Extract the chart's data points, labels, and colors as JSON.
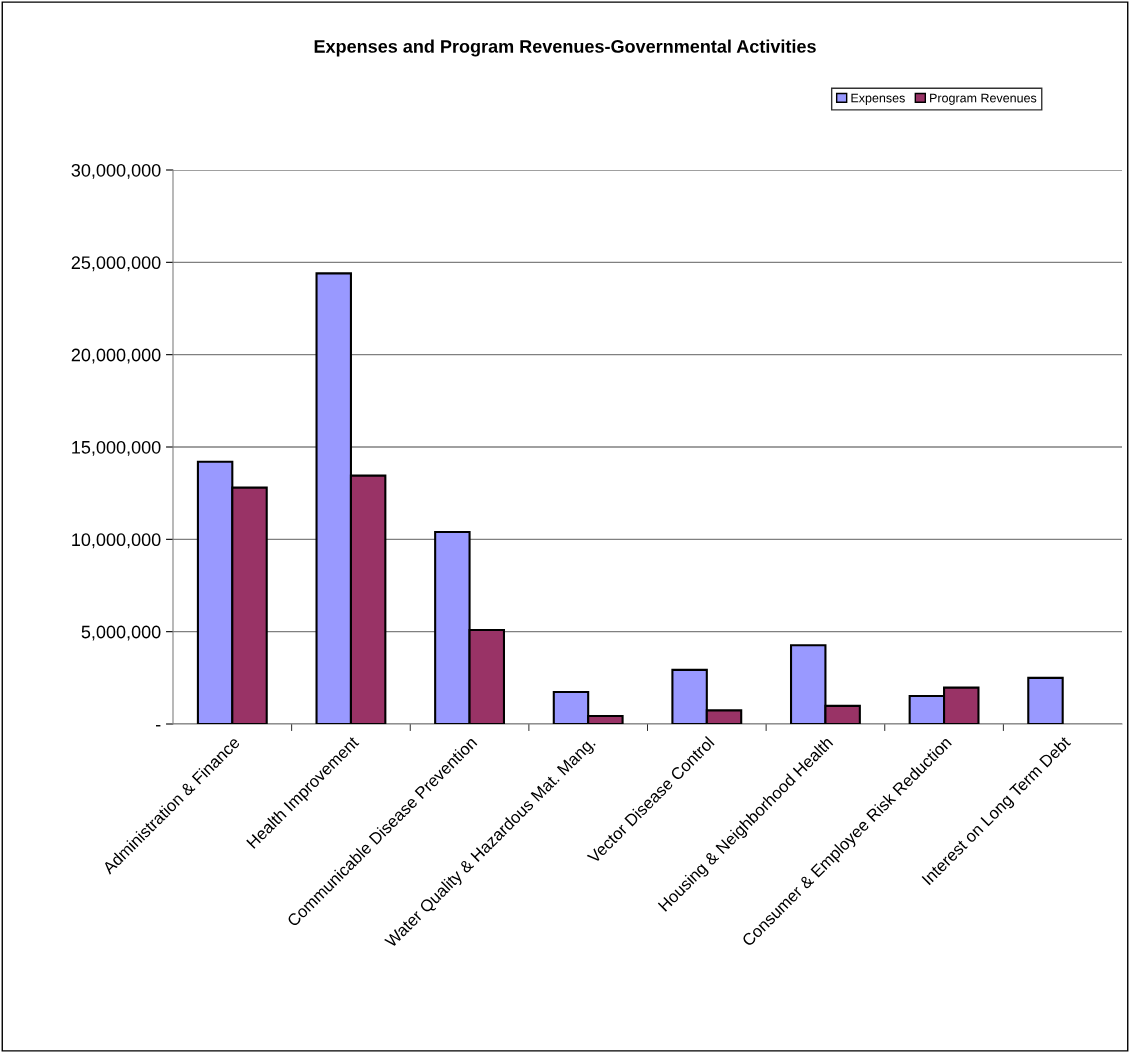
{
  "chart_data": {
    "type": "bar",
    "title": "Expenses and Program Revenues-Governmental Activities",
    "categories": [
      "Administration & Finance",
      "Health Improvement",
      "Communicable Disease Prevention",
      "Water Quality & Hazardous Mat. Mang.",
      "Vector Disease Control",
      "Housing & Neighborhood Health",
      "Consumer & Employee Risk Reduction",
      "Interest on Long Term Debt"
    ],
    "series": [
      {
        "name": "Expenses",
        "color": "#9999ff",
        "values": [
          14200000,
          24400000,
          10400000,
          1730000,
          2930000,
          4260000,
          1520000,
          2500000
        ]
      },
      {
        "name": "Program Revenues",
        "color": "#993366",
        "values": [
          12800000,
          13450000,
          5090000,
          430000.0,
          740000,
          980000,
          1970000,
          null
        ]
      }
    ],
    "ylim": [
      0,
      30000000
    ],
    "yticks": [
      {
        "value": 0,
        "label": "-"
      },
      {
        "value": 5000000,
        "label": "5,000,000"
      },
      {
        "value": 10000000,
        "label": "10,000,000"
      },
      {
        "value": 15000000,
        "label": "15,000,000"
      },
      {
        "value": 20000000,
        "label": "20,000,000"
      },
      {
        "value": 25000000,
        "label": "25,000,000"
      },
      {
        "value": 30000000,
        "label": "30,000,000"
      }
    ],
    "grid": "y",
    "legend": "top right"
  }
}
